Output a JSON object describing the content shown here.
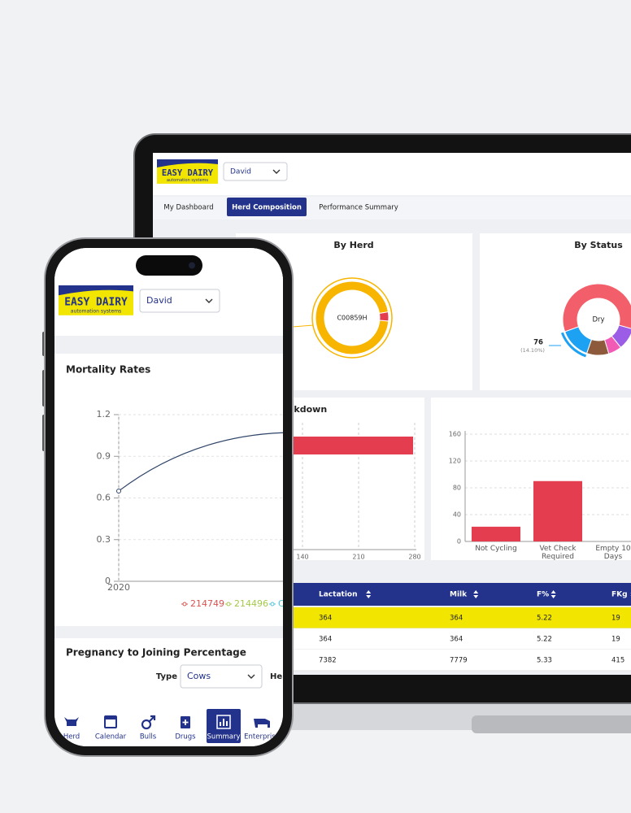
{
  "laptop": {
    "logo": {
      "title": "EASY DAIRY",
      "subtitle": "automation systems"
    },
    "user": "David",
    "tabs": [
      "My Dashboard",
      "Herd Composition",
      "Performance Summary"
    ],
    "active_tab": 1,
    "by_herd": {
      "title": "By Herd",
      "center_label": "C00859H",
      "values": [
        96,
        4
      ],
      "colors": [
        "#f7b500",
        "#e43d4f"
      ]
    },
    "by_status": {
      "title": "By Status",
      "center_label": "Dry",
      "callout_value": 76,
      "callout_label": "(14.10%)",
      "values": [
        59.8,
        10,
        6,
        10,
        14.1
      ],
      "colors": [
        "#f25f6a",
        "#9b5de5",
        "#f15bb5",
        "#8d5a3b",
        "#1da1f2"
      ]
    },
    "breakdown": {
      "title": "akdown",
      "values": [
        278
      ],
      "color": "#e43d4f",
      "xlim": [
        0,
        280
      ],
      "xticks": [
        140,
        210,
        280
      ]
    },
    "status_bars": {
      "categories": [
        "Not Cycling",
        "Vet Check Required",
        "Empty 10 Days"
      ],
      "values": [
        22,
        90,
        0
      ],
      "color": "#e43d4f",
      "ylim": [
        0,
        160
      ],
      "yticks": [
        0,
        40,
        80,
        120,
        160
      ]
    },
    "table": {
      "columns": [
        "Lactation",
        "Milk",
        "F%",
        "FKg"
      ],
      "rows": [
        [
          364,
          364,
          5.22,
          19
        ],
        [
          364,
          364,
          5.22,
          19
        ],
        [
          7382,
          7779,
          5.33,
          415
        ]
      ],
      "highlight_row": 0
    }
  },
  "phone": {
    "logo": {
      "title": "EASY DAIRY",
      "subtitle": "automation systems"
    },
    "user": "David",
    "mortality": {
      "title": "Mortality Rates",
      "type": "line",
      "x": [
        "2020",
        null
      ],
      "values": [
        0.65,
        1.05
      ],
      "color": "#2f4468",
      "ylim": [
        0,
        1.2
      ],
      "yticks": [
        0,
        {
          "value": 0.3,
          "label": "0.3"
        },
        {
          "value": 0.6,
          "label": "0.6"
        },
        {
          "value": 0.9,
          "label": "0.9"
        },
        {
          "value": 1.2,
          "label": "1.2"
        }
      ],
      "legend": [
        {
          "name": "214749",
          "color": "#d9534f"
        },
        {
          "name": "214496",
          "color": "#a5c84a"
        },
        {
          "name": "C",
          "color": "#4fc3d9"
        }
      ]
    },
    "pregnancy": {
      "title": "Pregnancy to Joining Percentage",
      "type_label": "Type",
      "type_value": "Cows",
      "herd_label": "Her"
    },
    "nav": [
      "Herd",
      "Calendar",
      "Bulls",
      "Drugs",
      "Summary",
      "Enterprise"
    ],
    "active_nav": 4
  }
}
